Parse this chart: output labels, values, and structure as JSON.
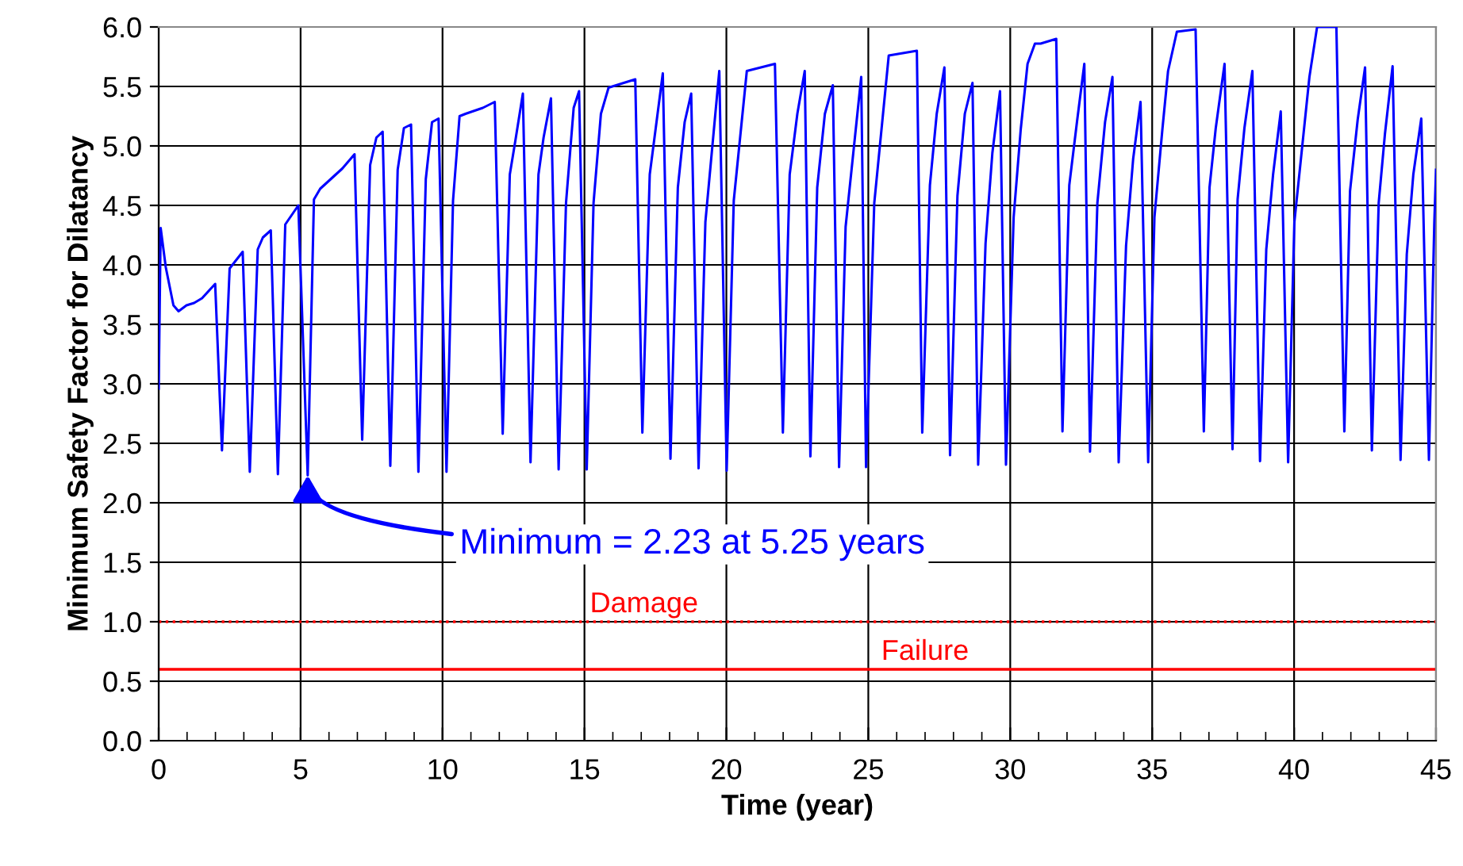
{
  "chart_data": {
    "type": "line",
    "xlabel": "Time (year)",
    "ylabel": "Minimum Safety Factor for Dilatancy",
    "xlim": [
      0,
      45
    ],
    "xticks": [
      0,
      5,
      10,
      15,
      20,
      25,
      30,
      35,
      40,
      45
    ],
    "ylim": [
      0,
      6
    ],
    "yticks": [
      {
        "value": 0,
        "label": "0.0"
      },
      {
        "value": 0.5,
        "label": "0.5"
      },
      {
        "value": 1,
        "label": "1.0"
      },
      {
        "value": 1.5,
        "label": "1.5"
      },
      {
        "value": 2,
        "label": "2.0"
      },
      {
        "value": 2.5,
        "label": "2.5"
      },
      {
        "value": 3,
        "label": "3.0"
      },
      {
        "value": 3.5,
        "label": "3.5"
      },
      {
        "value": 4,
        "label": "4.0"
      },
      {
        "value": 4.5,
        "label": "4.5"
      },
      {
        "value": 5,
        "label": "5.0"
      },
      {
        "value": 5.5,
        "label": "5.5"
      },
      {
        "value": 6,
        "label": "6.0"
      }
    ],
    "grid": true,
    "legend": false,
    "marker": "none",
    "line_style": "solid",
    "series": [
      {
        "color": "#0000ff",
        "x": [
          0.0,
          0.07,
          0.25,
          0.52,
          0.7,
          0.98,
          1.25,
          1.53,
          1.99,
          2.23,
          2.5,
          2.96,
          3.21,
          3.49,
          3.67,
          3.95,
          4.2,
          4.46,
          4.92,
          5.25,
          5.47,
          5.69,
          6.47,
          6.9,
          7.17,
          7.45,
          7.67,
          7.89,
          8.16,
          8.42,
          8.64,
          8.89,
          9.15,
          9.41,
          9.63,
          9.86,
          10.14,
          10.37,
          10.6,
          10.81,
          11.42,
          11.84,
          12.12,
          12.37,
          12.57,
          12.83,
          13.1,
          13.38,
          13.56,
          13.82,
          14.09,
          14.35,
          14.62,
          14.81,
          15.08,
          15.32,
          15.58,
          15.85,
          16.79,
          17.04,
          17.3,
          17.76,
          18.03,
          18.29,
          18.53,
          18.76,
          19.02,
          19.26,
          19.75,
          20.01,
          20.26,
          20.72,
          21.71,
          21.99,
          22.23,
          22.5,
          22.76,
          22.96,
          23.2,
          23.47,
          23.75,
          23.97,
          24.2,
          24.75,
          24.92,
          25.21,
          25.72,
          26.71,
          26.9,
          27.17,
          27.41,
          27.68,
          27.88,
          28.14,
          28.4,
          28.67,
          28.87,
          29.13,
          29.37,
          29.64,
          29.85,
          30.12,
          30.37,
          30.61,
          30.87,
          31.07,
          31.62,
          31.84,
          32.08,
          32.35,
          32.61,
          32.81,
          33.07,
          33.34,
          33.6,
          33.82,
          34.08,
          34.33,
          34.59,
          34.86,
          35.08,
          35.36,
          35.56,
          35.87,
          36.53,
          36.82,
          37.02,
          37.24,
          37.55,
          37.83,
          38.01,
          38.25,
          38.53,
          38.8,
          39.02,
          39.26,
          39.53,
          39.79,
          40.01,
          40.54,
          40.81,
          41.49,
          41.77,
          41.97,
          42.24,
          42.5,
          42.74,
          42.98,
          43.2,
          43.47,
          43.75,
          43.97,
          44.2,
          44.48,
          44.75,
          44.94,
          45.0
        ],
        "values": [
          2.96,
          4.31,
          3.98,
          3.66,
          3.61,
          3.66,
          3.68,
          3.72,
          3.84,
          2.44,
          3.97,
          4.11,
          2.26,
          4.13,
          4.23,
          4.29,
          2.24,
          4.34,
          4.5,
          2.23,
          4.55,
          4.64,
          4.81,
          4.93,
          2.53,
          4.84,
          5.07,
          5.12,
          2.31,
          4.8,
          5.15,
          5.18,
          2.26,
          4.72,
          5.2,
          5.23,
          2.26,
          4.54,
          5.25,
          5.27,
          5.32,
          5.37,
          2.58,
          4.76,
          5.05,
          5.44,
          2.34,
          4.76,
          5.07,
          5.4,
          2.28,
          4.52,
          5.32,
          5.46,
          2.28,
          4.52,
          5.27,
          5.49,
          5.56,
          2.59,
          4.76,
          5.61,
          2.37,
          4.65,
          5.2,
          5.44,
          2.29,
          4.36,
          5.63,
          2.27,
          4.54,
          5.63,
          5.69,
          2.59,
          4.76,
          5.27,
          5.63,
          2.39,
          4.65,
          5.27,
          5.51,
          2.3,
          4.32,
          5.58,
          2.3,
          4.52,
          5.76,
          5.8,
          2.59,
          4.67,
          5.27,
          5.66,
          2.4,
          4.58,
          5.27,
          5.53,
          2.32,
          4.18,
          4.94,
          5.46,
          2.32,
          4.4,
          5.14,
          5.69,
          5.86,
          5.86,
          5.9,
          2.6,
          4.67,
          5.2,
          5.69,
          2.43,
          4.52,
          5.2,
          5.58,
          2.34,
          4.16,
          4.89,
          5.37,
          2.34,
          4.4,
          5.14,
          5.63,
          5.96,
          5.98,
          2.6,
          4.65,
          5.15,
          5.69,
          2.45,
          4.55,
          5.15,
          5.63,
          2.35,
          4.13,
          4.76,
          5.29,
          2.34,
          4.36,
          5.58,
          6.0,
          6.0,
          2.6,
          4.62,
          5.22,
          5.66,
          2.44,
          4.52,
          5.1,
          5.67,
          2.36,
          4.09,
          4.76,
          5.23,
          2.36,
          4.36,
          4.8
        ]
      }
    ],
    "ref_lines": [
      {
        "axis": "y",
        "value": 1.0,
        "label": "Damage",
        "color": "#ff0000",
        "line_style": "dotted"
      },
      {
        "axis": "y",
        "value": 0.6,
        "label": "Failure",
        "color": "#ff0000",
        "line_style": "solid"
      }
    ],
    "annotations": [
      {
        "text": "Minimum = 2.23 at 5.25 years",
        "x": 5.25,
        "y": 2.23
      }
    ]
  }
}
